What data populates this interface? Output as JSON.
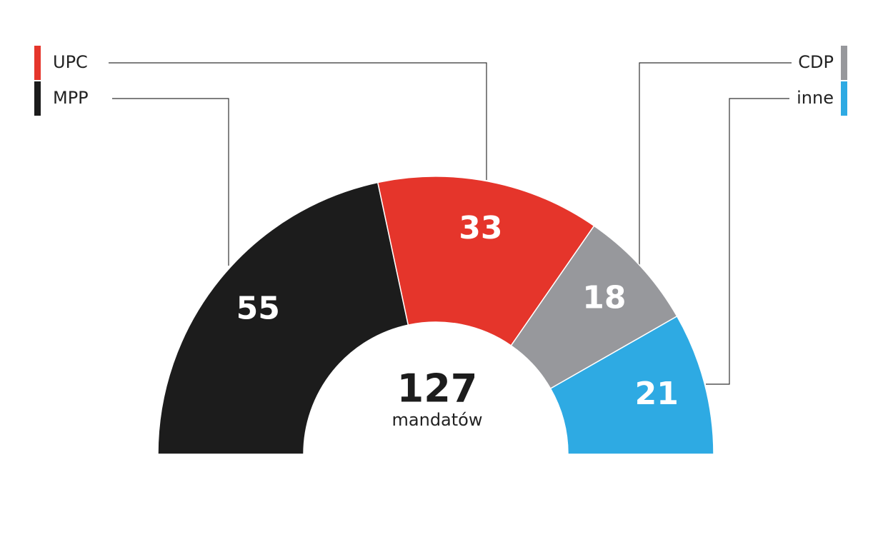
{
  "chart_data": {
    "type": "semi-donut",
    "series": [
      {
        "name": "MPP",
        "color": "#1c1c1c",
        "value": 55
      },
      {
        "name": "UPC",
        "color": "#e5352b",
        "value": 33
      },
      {
        "name": "CDP",
        "color": "#97989c",
        "value": 18
      },
      {
        "name": "inne",
        "color": "#2eaae3",
        "value": 21
      }
    ],
    "total": 127,
    "center_label": "mandatów"
  }
}
